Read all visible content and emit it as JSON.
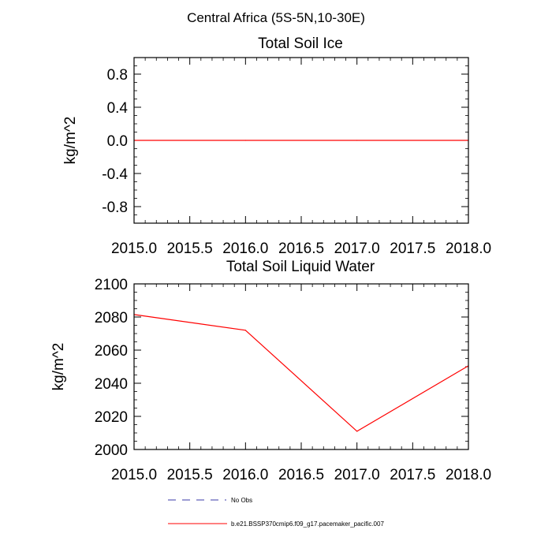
{
  "figure": {
    "title": "Central Africa (5S-5N,10-30E)"
  },
  "chart_data": [
    {
      "type": "line",
      "title": "Total Soil Ice",
      "xlabel": "",
      "ylabel": "kg/m^2",
      "xlim": [
        2015.0,
        2018.0
      ],
      "ylim": [
        -1.0,
        1.0
      ],
      "x_ticks": [
        "2015.0",
        "2015.5",
        "2016.0",
        "2016.5",
        "2017.0",
        "2017.5",
        "2018.0"
      ],
      "y_ticks": [
        "0.8",
        "0.4",
        "0.0",
        "-0.4",
        "-0.8"
      ],
      "grid": false,
      "series": [
        {
          "name": "b.e21.BSSP370cmip6.f09_g17.pacemaker_pacific.007",
          "color": "#ff0000",
          "x": [
            2015,
            2016,
            2017,
            2018
          ],
          "values": [
            0.0,
            0.0,
            0.0,
            0.0
          ]
        }
      ]
    },
    {
      "type": "line",
      "title": "Total Soil Liquid Water",
      "xlabel": "",
      "ylabel": "kg/m^2",
      "xlim": [
        2015.0,
        2018.0
      ],
      "ylim": [
        2000,
        2100
      ],
      "x_ticks": [
        "2015.0",
        "2015.5",
        "2016.0",
        "2016.5",
        "2017.0",
        "2017.5",
        "2018.0"
      ],
      "y_ticks": [
        "2100",
        "2080",
        "2060",
        "2040",
        "2020",
        "2000"
      ],
      "grid": false,
      "series": [
        {
          "name": "b.e21.BSSP370cmip6.f09_g17.pacemaker_pacific.007",
          "color": "#ff0000",
          "x": [
            2015,
            2016,
            2017,
            2018
          ],
          "values": [
            2081.5,
            2072,
            2011,
            2050.5
          ]
        }
      ]
    }
  ],
  "legend": {
    "placement": "bottom",
    "items": [
      {
        "label": "No Obs",
        "color": "#3a3aa8",
        "style": "dashed"
      },
      {
        "label": "b.e21.BSSP370cmip6.f09_g17.pacemaker_pacific.007",
        "color": "#ff0000",
        "style": "solid"
      }
    ]
  }
}
